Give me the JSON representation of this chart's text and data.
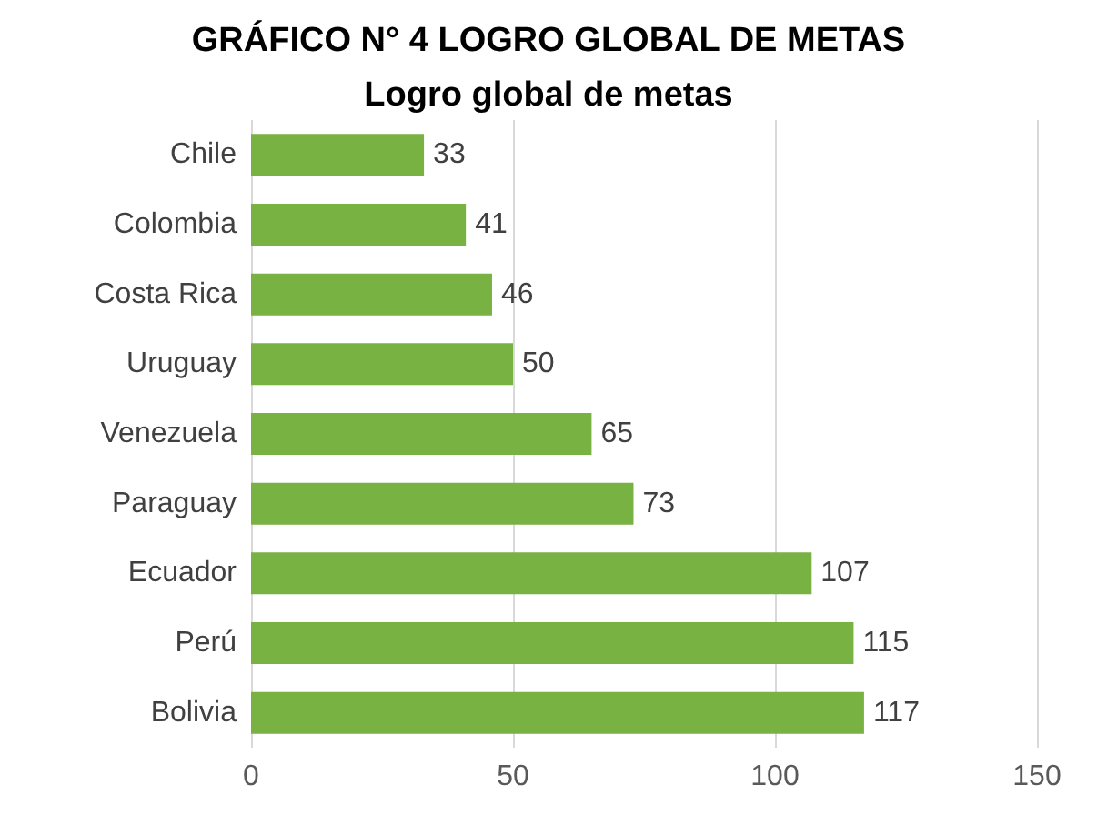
{
  "chart_data": {
    "type": "bar",
    "orientation": "horizontal",
    "title": "GRÁFICO N° 4 LOGRO GLOBAL DE METAS",
    "subtitle": "Logro global de metas",
    "categories": [
      "Chile",
      "Colombia",
      "Costa Rica",
      "Uruguay",
      "Venezuela",
      "Paraguay",
      "Ecuador",
      "Perú",
      "Bolivia"
    ],
    "values": [
      33,
      41,
      46,
      50,
      65,
      73,
      107,
      115,
      117
    ],
    "color": "#77b243",
    "data_labels": true,
    "xlim": [
      0,
      150
    ],
    "xticks": [
      0,
      50,
      100,
      150
    ],
    "grid": "x"
  }
}
